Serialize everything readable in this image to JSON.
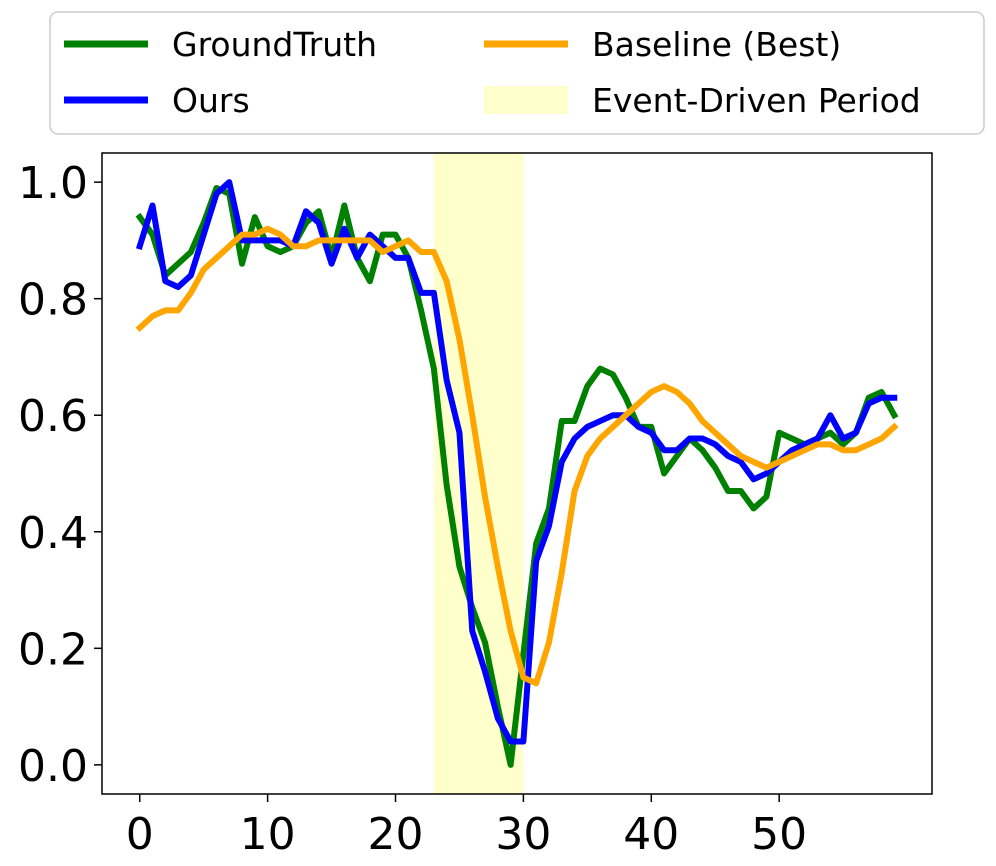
{
  "chart_data": {
    "type": "line",
    "title": "",
    "xlabel": "",
    "ylabel": "",
    "xlim": [
      -2.95,
      61.95
    ],
    "ylim": [
      -0.05,
      1.05
    ],
    "xticks": [
      0,
      10,
      20,
      30,
      40,
      50
    ],
    "xtick_labels": [
      "0",
      "10",
      "20",
      "30",
      "40",
      "50"
    ],
    "yticks": [
      0.0,
      0.2,
      0.4,
      0.6,
      0.8,
      1.0
    ],
    "ytick_labels": [
      "0.0",
      "0.2",
      "0.4",
      "0.6",
      "0.8",
      "1.0"
    ],
    "grid": false,
    "legend_placement": "top, outside plot, two columns",
    "x": [
      0,
      1,
      2,
      3,
      4,
      5,
      6,
      7,
      8,
      9,
      10,
      11,
      12,
      13,
      14,
      15,
      16,
      17,
      18,
      19,
      20,
      21,
      22,
      23,
      24,
      25,
      26,
      27,
      28,
      29,
      30,
      31,
      32,
      33,
      34,
      35,
      36,
      37,
      38,
      39,
      40,
      41,
      42,
      43,
      44,
      45,
      46,
      47,
      48,
      49,
      50,
      51,
      52,
      53,
      54,
      55,
      56,
      57,
      58,
      59
    ],
    "shaded_region": {
      "name": "Event-Driven Period",
      "x_start": 23,
      "x_end": 30,
      "color": "#ffffcc"
    },
    "series": [
      {
        "name": "GroundTruth",
        "color": "#008000",
        "values": [
          0.94,
          0.91,
          0.84,
          0.86,
          0.88,
          0.93,
          0.99,
          0.98,
          0.86,
          0.94,
          0.89,
          0.88,
          0.89,
          0.93,
          0.95,
          0.87,
          0.96,
          0.87,
          0.83,
          0.91,
          0.91,
          0.87,
          0.78,
          0.68,
          0.48,
          0.34,
          0.27,
          0.21,
          0.1,
          0.0,
          0.19,
          0.38,
          0.44,
          0.59,
          0.59,
          0.65,
          0.68,
          0.67,
          0.63,
          0.58,
          0.58,
          0.5,
          0.53,
          0.56,
          0.54,
          0.51,
          0.47,
          0.47,
          0.44,
          0.46,
          0.57,
          0.56,
          0.55,
          0.56,
          0.57,
          0.55,
          0.57,
          0.63,
          0.64,
          0.6
        ]
      },
      {
        "name": "Ours",
        "color": "#0000ff",
        "values": [
          0.89,
          0.96,
          0.83,
          0.82,
          0.84,
          0.91,
          0.98,
          1.0,
          0.9,
          0.9,
          0.9,
          0.9,
          0.89,
          0.95,
          0.93,
          0.86,
          0.92,
          0.87,
          0.91,
          0.89,
          0.87,
          0.87,
          0.81,
          0.81,
          0.66,
          0.57,
          0.23,
          0.16,
          0.08,
          0.04,
          0.04,
          0.35,
          0.41,
          0.52,
          0.56,
          0.58,
          0.59,
          0.6,
          0.6,
          0.58,
          0.57,
          0.54,
          0.54,
          0.56,
          0.56,
          0.55,
          0.53,
          0.52,
          0.49,
          0.5,
          0.52,
          0.54,
          0.55,
          0.56,
          0.6,
          0.56,
          0.57,
          0.62,
          0.63,
          0.63
        ]
      },
      {
        "name": "Baseline (Best)",
        "color": "#ffa500",
        "values": [
          0.75,
          0.77,
          0.78,
          0.78,
          0.81,
          0.85,
          0.87,
          0.89,
          0.91,
          0.91,
          0.92,
          0.91,
          0.89,
          0.89,
          0.9,
          0.9,
          0.9,
          0.9,
          0.9,
          0.88,
          0.89,
          0.9,
          0.88,
          0.88,
          0.83,
          0.73,
          0.6,
          0.46,
          0.34,
          0.23,
          0.15,
          0.14,
          0.21,
          0.33,
          0.47,
          0.53,
          0.56,
          0.58,
          0.6,
          0.62,
          0.64,
          0.65,
          0.64,
          0.62,
          0.59,
          0.57,
          0.55,
          0.53,
          0.52,
          0.51,
          0.52,
          0.53,
          0.54,
          0.55,
          0.55,
          0.54,
          0.54,
          0.55,
          0.56,
          0.58
        ]
      }
    ]
  },
  "legend": {
    "items": [
      {
        "label": "GroundTruth",
        "kind": "line",
        "color": "#008000"
      },
      {
        "label": "Baseline (Best)",
        "kind": "line",
        "color": "#ffa500"
      },
      {
        "label": "Ours",
        "kind": "line",
        "color": "#0000ff"
      },
      {
        "label": "Event-Driven Period",
        "kind": "patch",
        "color": "#ffffcc"
      }
    ]
  }
}
